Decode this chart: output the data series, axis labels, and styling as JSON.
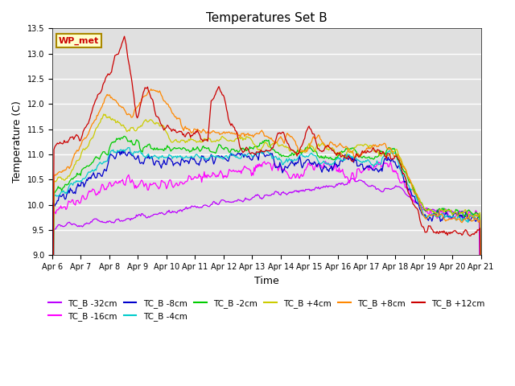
{
  "title": "Temperatures Set B",
  "xlabel": "Time",
  "ylabel": "Temperature (C)",
  "ylim": [
    9.0,
    13.5
  ],
  "series_names": [
    "TC_B -32cm",
    "TC_B -16cm",
    "TC_B -8cm",
    "TC_B -4cm",
    "TC_B -2cm",
    "TC_B +4cm",
    "TC_B +8cm",
    "TC_B +12cm"
  ],
  "series_colors": [
    "#BB00FF",
    "#FF00FF",
    "#0000CC",
    "#00CCCC",
    "#00CC00",
    "#CCCC00",
    "#FF8800",
    "#CC0000"
  ],
  "annotation_text": "WP_met",
  "annotation_color": "#CC0000",
  "annotation_bg": "#FFFFCC",
  "annotation_border": "#AA8800",
  "n_points": 500
}
